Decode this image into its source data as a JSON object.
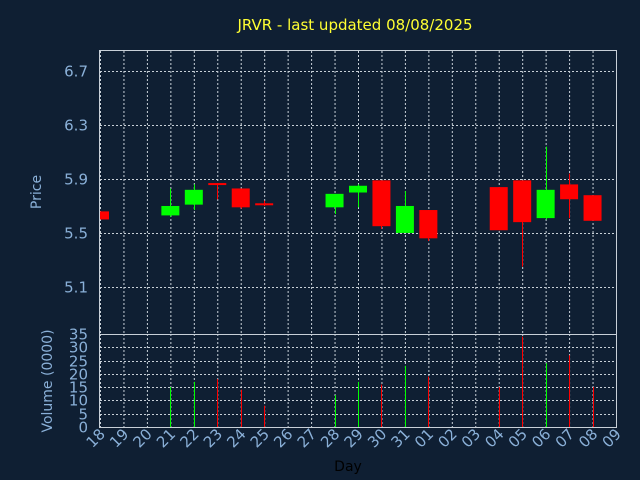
{
  "chart_data": {
    "type": "candlestick",
    "title": "JRVR - last updated 08/08/2025",
    "ylabel": "Price",
    "ylabel_volume": "Volume (0000)",
    "xlabel": "Day",
    "ylim": [
      4.75,
      6.85
    ],
    "volume_ylim": [
      0,
      35
    ],
    "y_ticks": [
      "6.7",
      "6.3",
      "5.9",
      "5.5",
      "5.1"
    ],
    "y_tick_values": [
      6.7,
      6.3,
      5.9,
      5.5,
      5.1
    ],
    "volume_ticks": [
      "35",
      "30",
      "25",
      "20",
      "15",
      "10",
      "5",
      "0"
    ],
    "volume_tick_values": [
      35,
      30,
      25,
      20,
      15,
      10,
      5,
      0
    ],
    "grid": true,
    "colors": {
      "up": "#00ff00",
      "down": "#ff0000",
      "background": "#0f1f33",
      "title": "#ffff33",
      "axis": "#8ab0d8",
      "grid": "#c8d0d8"
    },
    "categories": [
      "18",
      "19",
      "20",
      "21",
      "22",
      "23",
      "24",
      "25",
      "26",
      "27",
      "28",
      "29",
      "30",
      "31",
      "01",
      "02",
      "03",
      "04",
      "05",
      "06",
      "07",
      "08",
      "09"
    ],
    "candles": [
      {
        "day": "18",
        "open": 5.66,
        "high": 5.66,
        "low": 5.6,
        "close": 5.6,
        "volume": 0
      },
      {
        "day": "21",
        "open": 5.63,
        "high": 5.83,
        "low": 5.62,
        "close": 5.7,
        "volume": 15
      },
      {
        "day": "22",
        "open": 5.71,
        "high": 5.86,
        "low": 5.67,
        "close": 5.82,
        "volume": 17
      },
      {
        "day": "23",
        "open": 5.87,
        "high": 5.87,
        "low": 5.75,
        "close": 5.86,
        "volume": 18
      },
      {
        "day": "24",
        "open": 5.83,
        "high": 5.83,
        "low": 5.68,
        "close": 5.69,
        "volume": 14
      },
      {
        "day": "25",
        "open": 5.72,
        "high": 5.74,
        "low": 5.7,
        "close": 5.71,
        "volume": 8
      },
      {
        "day": "28",
        "open": 5.69,
        "high": 5.79,
        "low": 5.64,
        "close": 5.79,
        "volume": 12
      },
      {
        "day": "29",
        "open": 5.8,
        "high": 5.86,
        "low": 5.69,
        "close": 5.85,
        "volume": 17
      },
      {
        "day": "30",
        "open": 5.89,
        "high": 5.89,
        "low": 5.53,
        "close": 5.55,
        "volume": 16
      },
      {
        "day": "31",
        "open": 5.5,
        "high": 5.81,
        "low": 5.5,
        "close": 5.7,
        "volume": 23
      },
      {
        "day": "01",
        "open": 5.67,
        "high": 5.67,
        "low": 5.44,
        "close": 5.46,
        "volume": 19
      },
      {
        "day": "04",
        "open": 5.84,
        "high": 5.84,
        "low": 5.52,
        "close": 5.52,
        "volume": 15
      },
      {
        "day": "05",
        "open": 5.89,
        "high": 5.89,
        "low": 5.25,
        "close": 5.58,
        "volume": 34
      },
      {
        "day": "06",
        "open": 5.61,
        "high": 6.14,
        "low": 5.6,
        "close": 5.82,
        "volume": 24
      },
      {
        "day": "07",
        "open": 5.86,
        "high": 5.94,
        "low": 5.61,
        "close": 5.75,
        "volume": 27
      },
      {
        "day": "08",
        "open": 5.78,
        "high": 5.78,
        "low": 5.59,
        "close": 5.59,
        "volume": 15
      }
    ]
  }
}
